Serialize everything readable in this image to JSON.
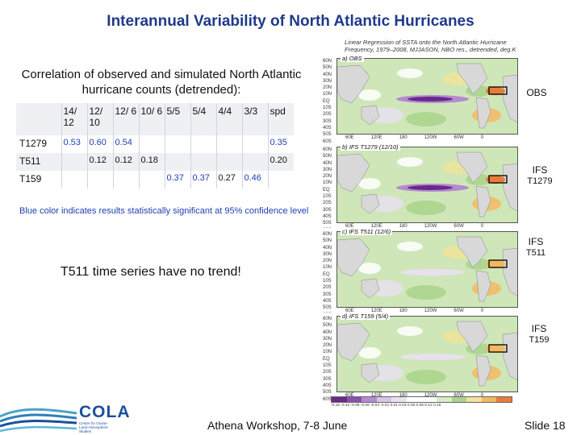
{
  "title": "Interannual Variability of North Atlantic Hurricanes",
  "subtitle": "Correlation of observed and simulated North Atlantic hurricane counts (detrended):",
  "table": {
    "headers": [
      "",
      "14/ 12",
      "12/ 10",
      "12/ 6",
      "10/ 6",
      "5/5",
      "5/4",
      "4/4",
      "3/3",
      "spd"
    ],
    "rows": [
      {
        "label": "T1279",
        "cells": [
          "0.53",
          "0.60",
          "0.54",
          "",
          "",
          "",
          "",
          "",
          "0.35"
        ]
      },
      {
        "label": "T511",
        "cells": [
          "",
          "0.12",
          "0.12",
          "0.18",
          "",
          "",
          "",
          "",
          "0.20"
        ]
      },
      {
        "label": "T159",
        "cells": [
          "",
          "",
          "",
          "",
          "0.37",
          "0.37",
          "0.27",
          "0.46",
          ""
        ]
      }
    ]
  },
  "note": "Blue color indicates results statistically significant at 95% confidence level",
  "trend_text": "T511 time series have no trend!",
  "maps": {
    "header_line1": "Linear Regression of SSTA onto the North Atlantic Hurricane",
    "header_line2": "Frequency, 1979–2008, MJJASON, NBO res., detrended, deg.K",
    "panels": [
      {
        "tag": "a) OBS",
        "side": "OBS",
        "side2": ""
      },
      {
        "tag": "b) IFS T1279 (12/10)",
        "side": "IFS",
        "side2": "T1279"
      },
      {
        "tag": "c) IFS T511 (12/6)",
        "side": "IFS",
        "side2": "T511"
      },
      {
        "tag": "d) IFS T159 (5/4)",
        "side": "IFS",
        "side2": "T159"
      }
    ],
    "lat_labels": [
      "60N",
      "50N",
      "40N",
      "30N",
      "20N",
      "10N",
      "EQ",
      "10S",
      "20S",
      "30S",
      "40S",
      "50S",
      "60S"
    ],
    "lon_labels": [
      "60E",
      "120E",
      "180",
      "120W",
      "60W",
      "0"
    ],
    "colorbar_labels": "-0.15 -0.12 -0.09 -0.06 -0.03 -0.01 0.01 0.03 0.06 0.09 0.12 0.15",
    "colorbar_colors": [
      "#6a2a8a",
      "#8a4fb0",
      "#b48ad0",
      "#d8c4e8",
      "#e8e0ef",
      "#ffffff",
      "#ffffff",
      "#d9ecc8",
      "#a9d48b",
      "#f0e39a",
      "#f4b862",
      "#e87d3a"
    ]
  },
  "footer": {
    "center": "Athena Workshop, 7-8 June",
    "right": "Slide 18"
  },
  "logo": {
    "name": "COLA",
    "sub": "Center for Ocean-Land-Atmosphere Studies"
  }
}
